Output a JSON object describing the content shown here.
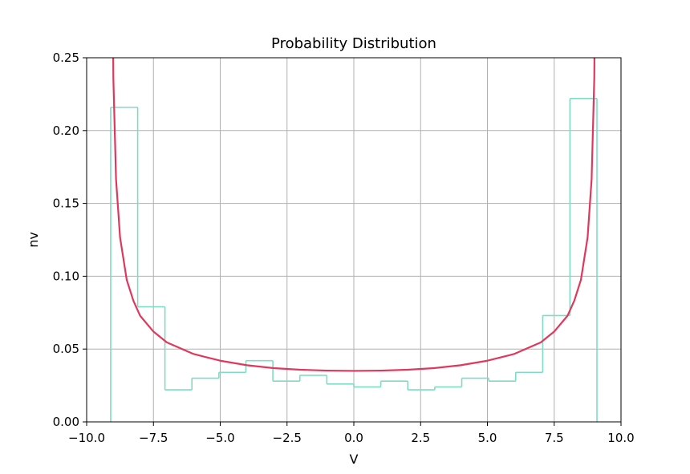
{
  "chart_data": {
    "type": "line",
    "title": "Probability Distribution",
    "xlabel": "V",
    "ylabel": "nv",
    "xlim": [
      -10,
      10
    ],
    "ylim": [
      0,
      0.25
    ],
    "grid": true,
    "x_ticks": [
      -10,
      -7.5,
      -5,
      -2.5,
      0,
      2.5,
      5,
      7.5,
      10
    ],
    "x_tick_labels": [
      "−10.0",
      "−7.5",
      "−5.0",
      "−2.5",
      "0.0",
      "2.5",
      "5.0",
      "7.5",
      "10.0"
    ],
    "y_ticks": [
      0,
      0.05,
      0.1,
      0.15,
      0.2,
      0.25
    ],
    "y_tick_labels": [
      "0.00",
      "0.05",
      "0.10",
      "0.15",
      "0.20",
      "0.25"
    ],
    "colors": {
      "histogram": "#7fdcc4",
      "curve": "#e0385c"
    },
    "histogram": {
      "bin_edges": [
        -9.1,
        -8.09,
        -7.07,
        -6.06,
        -5.05,
        -4.04,
        -3.03,
        -2.02,
        -1.01,
        0.0,
        1.01,
        2.02,
        3.03,
        4.04,
        5.05,
        6.06,
        7.07,
        8.09,
        9.1
      ],
      "values": [
        0.216,
        0.079,
        0.022,
        0.03,
        0.034,
        0.042,
        0.028,
        0.032,
        0.026,
        0.024,
        0.028,
        0.022,
        0.024,
        0.03,
        0.028,
        0.034,
        0.073,
        0.222
      ]
    },
    "curve": {
      "function": "1/(pi*sqrt(A^2 - V^2))",
      "amplitude": 9.1,
      "x": [
        -9.05,
        -9.0,
        -8.9,
        -8.75,
        -8.5,
        -8.25,
        -8.0,
        -7.5,
        -7.0,
        -6.0,
        -5.0,
        -4.0,
        -3.0,
        -2.0,
        -1.0,
        0.0,
        1.0,
        2.0,
        3.0,
        4.0,
        5.0,
        6.0,
        7.0,
        7.5,
        8.0,
        8.25,
        8.5,
        8.75,
        8.9,
        9.0,
        9.05
      ],
      "y": [
        0.3655,
        0.2357,
        0.1666,
        0.1267,
        0.0975,
        0.0831,
        0.0729,
        0.062,
        0.0546,
        0.0466,
        0.042,
        0.0389,
        0.0369,
        0.0358,
        0.0352,
        0.035,
        0.0352,
        0.0358,
        0.0369,
        0.0389,
        0.042,
        0.0466,
        0.0546,
        0.062,
        0.0729,
        0.0831,
        0.0975,
        0.1267,
        0.1666,
        0.2357,
        0.3655
      ]
    }
  }
}
